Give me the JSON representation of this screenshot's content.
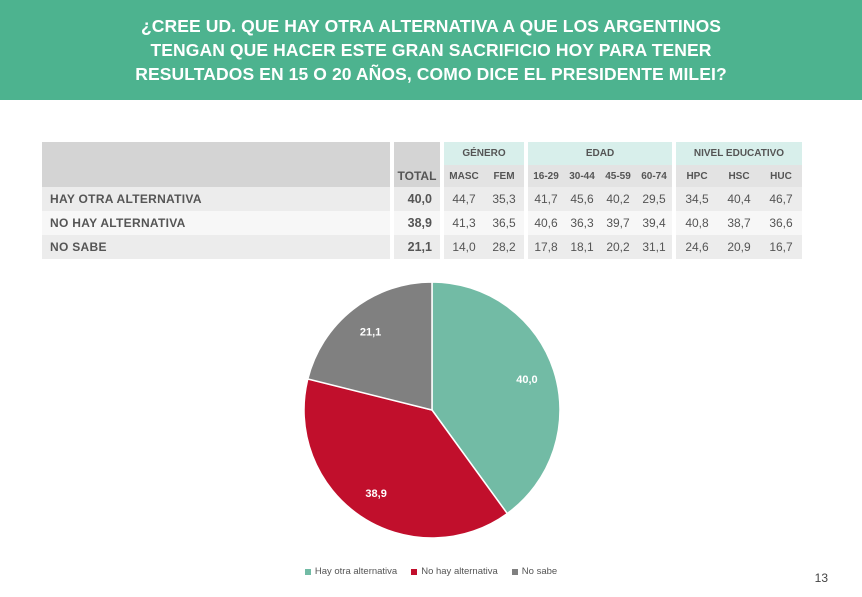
{
  "title": {
    "lines": [
      "¿CREE UD. QUE HAY OTRA ALTERNATIVA A QUE LOS ARGENTINOS",
      "TENGAN QUE HACER ESTE GRAN SACRIFICIO HOY PARA TENER",
      "RESULTADOS EN 15 O 20 AÑOS, COMO DICE EL PRESIDENTE MILEI?"
    ]
  },
  "table": {
    "groups": {
      "genero": "GÉNERO",
      "edad": "EDAD",
      "nivel": "NIVEL EDUCATIVO"
    },
    "columns": {
      "total": "TOTAL",
      "masc": "MASC",
      "fem": "FEM",
      "e1": "16-29",
      "e2": "30-44",
      "e3": "45-59",
      "e4": "60-74",
      "hpc": "HPC",
      "hsc": "HSC",
      "huc": "HUC"
    },
    "rows": [
      {
        "label": "HAY OTRA ALTERNATIVA",
        "total": "40,0",
        "masc": "44,7",
        "fem": "35,3",
        "e1": "41,7",
        "e2": "45,6",
        "e3": "40,2",
        "e4": "29,5",
        "hpc": "34,5",
        "hsc": "40,4",
        "huc": "46,7"
      },
      {
        "label": "NO HAY ALTERNATIVA",
        "total": "38,9",
        "masc": "41,3",
        "fem": "36,5",
        "e1": "40,6",
        "e2": "36,3",
        "e3": "39,7",
        "e4": "39,4",
        "hpc": "40,8",
        "hsc": "38,7",
        "huc": "36,6"
      },
      {
        "label": "NO SABE",
        "total": "21,1",
        "masc": "14,0",
        "fem": "28,2",
        "e1": "17,8",
        "e2": "18,1",
        "e3": "20,2",
        "e4": "31,1",
        "hpc": "24,6",
        "hsc": "20,9",
        "huc": "16,7"
      }
    ]
  },
  "chart_data": {
    "type": "pie",
    "slices": [
      {
        "name": "Hay otra alternativa",
        "value": 40.0,
        "label": "40,0",
        "color": "#72bba5"
      },
      {
        "name": "No hay alternativa",
        "value": 38.9,
        "label": "38,9",
        "color": "#c10f2c"
      },
      {
        "name": "No sabe",
        "value": 21.1,
        "label": "21,1",
        "color": "#808080"
      }
    ],
    "legend_position": "bottom"
  },
  "page_number": "13"
}
